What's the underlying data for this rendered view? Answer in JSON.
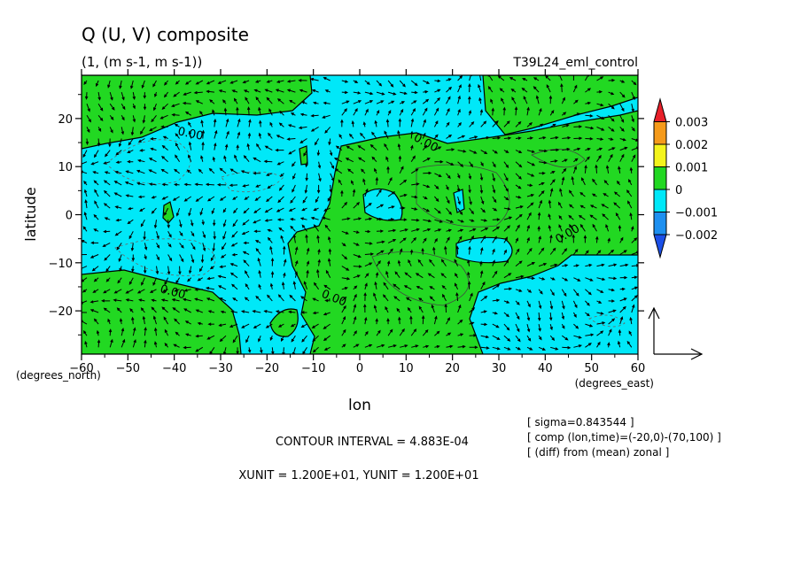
{
  "title": "Q (U, V) composite",
  "units": "(1, (m s-1, m s-1))",
  "experiment": "T39L24_eml_control",
  "footer": {
    "contour_interval": "CONTOUR INTERVAL = 4.883E-04",
    "vector_units": "XUNIT = 1.200E+01, YUNIT = 1.200E+01",
    "info": [
      "[ sigma=0.843544 ]",
      "[ comp (lon,time)=(-20,0)-(70,100) ]",
      "[ (diff) from (mean) zonal ]"
    ]
  },
  "chart_data": {
    "type": "heatmap",
    "title": "Q (U, V) composite",
    "xlabel": "lon",
    "ylabel": "latitude",
    "x_unit_label": "(degrees_east)",
    "y_unit_label": "(degrees_north)",
    "xlim": [
      -60,
      60
    ],
    "ylim": [
      -29,
      29
    ],
    "x_ticks": [
      -60,
      -50,
      -40,
      -30,
      -20,
      -10,
      0,
      10,
      20,
      30,
      40,
      50,
      60
    ],
    "y_ticks": [
      -20,
      -10,
      0,
      10,
      20
    ],
    "contour_labels": [
      "0.00",
      "0.00",
      "0.00",
      "0.00",
      "0.00"
    ],
    "colorbar": {
      "labels": [
        "0.003",
        "0.002",
        "0.001",
        "0",
        "-0.001",
        "-0.002"
      ],
      "colors": [
        "#e8202a",
        "#f59a1a",
        "#f4f41c",
        "#22d822",
        "#00e8f8",
        "#1e90f0",
        "#1c50e8"
      ]
    },
    "field_colors": {
      "positive": "#22d822",
      "negative": "#00e8f8"
    }
  }
}
